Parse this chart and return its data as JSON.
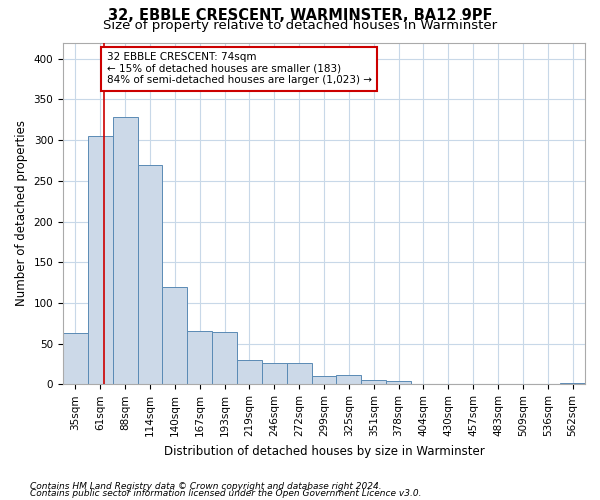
{
  "title1": "32, EBBLE CRESCENT, WARMINSTER, BA12 9PF",
  "title2": "Size of property relative to detached houses in Warminster",
  "xlabel": "Distribution of detached houses by size in Warminster",
  "ylabel": "Number of detached properties",
  "bar_labels": [
    "35sqm",
    "61sqm",
    "88sqm",
    "114sqm",
    "140sqm",
    "167sqm",
    "193sqm",
    "219sqm",
    "246sqm",
    "272sqm",
    "299sqm",
    "325sqm",
    "351sqm",
    "378sqm",
    "404sqm",
    "430sqm",
    "457sqm",
    "483sqm",
    "509sqm",
    "536sqm",
    "562sqm"
  ],
  "bar_heights": [
    63,
    305,
    328,
    270,
    120,
    65,
    64,
    30,
    26,
    26,
    10,
    11,
    5,
    4,
    1,
    1,
    0,
    1,
    0,
    0,
    2
  ],
  "bar_color": "#ccd9e8",
  "bar_edgecolor": "#5a8ab5",
  "red_line_x": 1.15,
  "annotation_text": "32 EBBLE CRESCENT: 74sqm\n← 15% of detached houses are smaller (183)\n84% of semi-detached houses are larger (1,023) →",
  "annotation_box_color": "#ffffff",
  "annotation_box_edgecolor": "#cc0000",
  "ylim": [
    0,
    420
  ],
  "yticks": [
    0,
    50,
    100,
    150,
    200,
    250,
    300,
    350,
    400
  ],
  "footer1": "Contains HM Land Registry data © Crown copyright and database right 2024.",
  "footer2": "Contains public sector information licensed under the Open Government Licence v3.0.",
  "background_color": "#ffffff",
  "grid_color": "#c8d8e8",
  "title1_fontsize": 10.5,
  "title2_fontsize": 9.5,
  "xlabel_fontsize": 8.5,
  "ylabel_fontsize": 8.5,
  "tick_fontsize": 7.5,
  "annotation_fontsize": 7.5,
  "footer_fontsize": 6.5
}
